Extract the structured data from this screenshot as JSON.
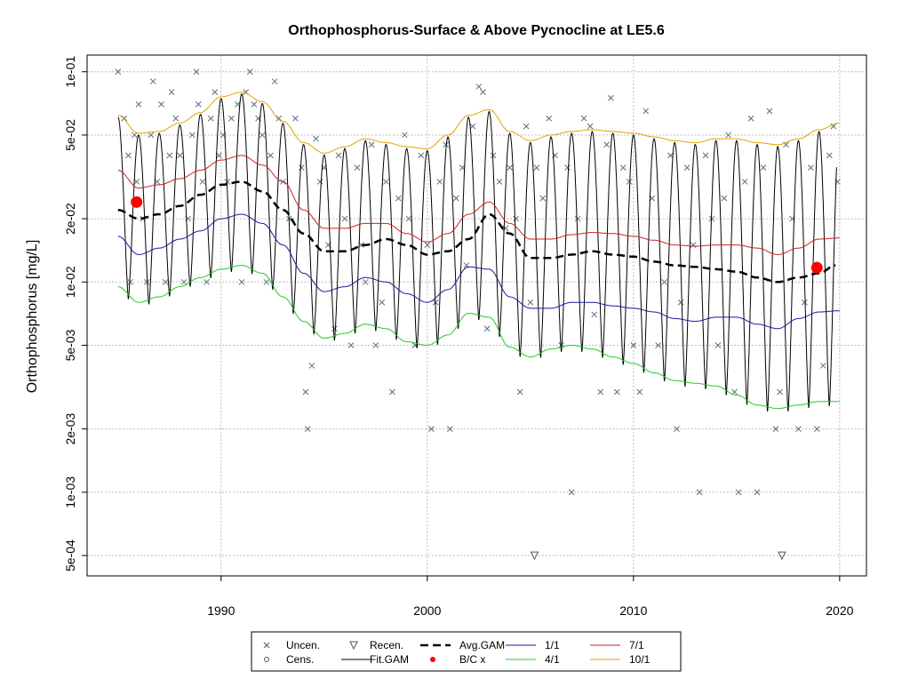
{
  "chart_data": {
    "type": "line",
    "title": "Orthophosphorus-Surface & Above Pycnocline at LE5.6",
    "ylabel": "Orthophosphorus [mg/L]",
    "xlabel": "",
    "y_scale": "log",
    "xlim": [
      1983.5,
      2021.3
    ],
    "ylim": [
      0.0004,
      0.12
    ],
    "x_ticks": [
      1990,
      2000,
      2010,
      2020
    ],
    "y_ticks": [
      {
        "value": 0.1,
        "label": "1e-01"
      },
      {
        "value": 0.05,
        "label": "5e-02"
      },
      {
        "value": 0.02,
        "label": "2e-02"
      },
      {
        "value": 0.01,
        "label": "1e-02"
      },
      {
        "value": 0.005,
        "label": "5e-03"
      },
      {
        "value": 0.002,
        "label": "2e-03"
      },
      {
        "value": 0.001,
        "label": "1e-03"
      },
      {
        "value": 0.0005,
        "label": "5e-04"
      }
    ],
    "grid": true,
    "colors": {
      "fit": "#000000",
      "avg": "#000000",
      "p1": "#1a1aa0",
      "p4": "#22cc22",
      "p7": "#cc2222",
      "p10": "#e6a100",
      "bc": "#ff0000",
      "points": "#5a6e82"
    },
    "series": [
      {
        "name": "Avg.GAM",
        "x": [
          1985,
          1986,
          1987,
          1988,
          1989,
          1990,
          1991,
          1992,
          1993,
          1994,
          1995,
          1996,
          1997,
          1998,
          1999,
          2000,
          2001,
          2002,
          2003,
          2004,
          2005,
          2006,
          2007,
          2008,
          2009,
          2010,
          2011,
          2012,
          2013,
          2014,
          2015,
          2016,
          2017,
          2018,
          2019,
          2019.8
        ],
        "y": [
          0.022,
          0.02,
          0.021,
          0.023,
          0.026,
          0.029,
          0.03,
          0.027,
          0.022,
          0.017,
          0.014,
          0.014,
          0.015,
          0.016,
          0.015,
          0.0135,
          0.014,
          0.016,
          0.021,
          0.017,
          0.013,
          0.013,
          0.0135,
          0.014,
          0.0135,
          0.0132,
          0.0125,
          0.012,
          0.0118,
          0.0115,
          0.0112,
          0.0105,
          0.01,
          0.0105,
          0.011,
          0.012
        ]
      },
      {
        "name": "1/1",
        "x": [
          1985,
          1986,
          1987,
          1988,
          1989,
          1990,
          1991,
          1992,
          1993,
          1994,
          1995,
          1996,
          1997,
          1998,
          1999,
          2000,
          2001,
          2002,
          2003,
          2004,
          2005,
          2006,
          2007,
          2008,
          2009,
          2010,
          2011,
          2012,
          2013,
          2014,
          2015,
          2016,
          2017,
          2018,
          2019,
          2020
        ],
        "y": [
          0.0165,
          0.0135,
          0.0145,
          0.016,
          0.0175,
          0.02,
          0.021,
          0.019,
          0.015,
          0.011,
          0.009,
          0.0095,
          0.0105,
          0.01,
          0.0088,
          0.008,
          0.0092,
          0.0118,
          0.0115,
          0.0085,
          0.0075,
          0.0075,
          0.008,
          0.008,
          0.0077,
          0.0075,
          0.0072,
          0.0067,
          0.0065,
          0.0068,
          0.0068,
          0.0063,
          0.006,
          0.0067,
          0.0072,
          0.0073
        ]
      },
      {
        "name": "4/1",
        "x": [
          1985,
          1986,
          1987,
          1988,
          1989,
          1990,
          1991,
          1992,
          1993,
          1994,
          1995,
          1996,
          1997,
          1998,
          1999,
          2000,
          2001,
          2002,
          2003,
          2004,
          2005,
          2006,
          2007,
          2008,
          2009,
          2010,
          2011,
          2012,
          2013,
          2014,
          2015,
          2016,
          2017,
          2018,
          2019,
          2020
        ],
        "y": [
          0.0095,
          0.008,
          0.0085,
          0.0095,
          0.0105,
          0.0115,
          0.012,
          0.011,
          0.0085,
          0.0065,
          0.0054,
          0.0057,
          0.0063,
          0.006,
          0.0052,
          0.005,
          0.0056,
          0.0071,
          0.0068,
          0.0049,
          0.0044,
          0.0048,
          0.005,
          0.0048,
          0.0044,
          0.0041,
          0.0037,
          0.0034,
          0.0033,
          0.0032,
          0.0029,
          0.0026,
          0.0025,
          0.0026,
          0.0027,
          0.0027
        ]
      },
      {
        "name": "7/1",
        "x": [
          1985,
          1986,
          1987,
          1988,
          1989,
          1990,
          1991,
          1992,
          1993,
          1994,
          1995,
          1996,
          1997,
          1998,
          1999,
          2000,
          2001,
          2002,
          2003,
          2004,
          2005,
          2006,
          2007,
          2008,
          2009,
          2010,
          2011,
          2012,
          2013,
          2014,
          2015,
          2016,
          2017,
          2018,
          2019,
          2020
        ],
        "y": [
          0.034,
          0.028,
          0.029,
          0.031,
          0.034,
          0.038,
          0.04,
          0.036,
          0.03,
          0.022,
          0.018,
          0.018,
          0.019,
          0.019,
          0.017,
          0.0155,
          0.017,
          0.021,
          0.024,
          0.019,
          0.016,
          0.016,
          0.0168,
          0.0172,
          0.017,
          0.0165,
          0.0158,
          0.015,
          0.0148,
          0.015,
          0.015,
          0.0145,
          0.0135,
          0.0145,
          0.016,
          0.0162
        ]
      },
      {
        "name": "10/1",
        "x": [
          1985,
          1986,
          1987,
          1988,
          1989,
          1990,
          1991,
          1992,
          1993,
          1994,
          1995,
          1996,
          1997,
          1998,
          1999,
          2000,
          2001,
          2002,
          2003,
          2004,
          2005,
          2006,
          2007,
          2008,
          2009,
          2010,
          2011,
          2012,
          2013,
          2014,
          2015,
          2016,
          2017,
          2018,
          2019,
          2020
        ],
        "y": [
          0.062,
          0.051,
          0.052,
          0.057,
          0.064,
          0.076,
          0.08,
          0.072,
          0.058,
          0.046,
          0.041,
          0.044,
          0.048,
          0.046,
          0.044,
          0.043,
          0.05,
          0.062,
          0.066,
          0.052,
          0.047,
          0.05,
          0.052,
          0.053,
          0.052,
          0.051,
          0.049,
          0.047,
          0.046,
          0.048,
          0.048,
          0.046,
          0.045,
          0.048,
          0.053,
          0.057
        ]
      }
    ],
    "fit_gam": {
      "name": "Fit.GAM",
      "seasonal_peak_fraction": 0.1,
      "description_of_envelope": "oscillates annually between 1/1-ish minimum and 10/1 envelope"
    },
    "bc_points": [
      {
        "x": 1985.9,
        "y": 0.024
      },
      {
        "x": 2018.9,
        "y": 0.0117
      }
    ],
    "recensored_points": [
      {
        "x": 2005.2,
        "y": 0.0005
      },
      {
        "x": 2017.2,
        "y": 0.0005
      }
    ],
    "uncensored_points": [
      [
        1985.0,
        0.1
      ],
      [
        1985.3,
        0.06
      ],
      [
        1985.5,
        0.04
      ],
      [
        1985.6,
        0.01
      ],
      [
        1985.8,
        0.05
      ],
      [
        1985.9,
        0.03
      ],
      [
        1986.0,
        0.07
      ],
      [
        1986.2,
        0.02
      ],
      [
        1986.4,
        0.01
      ],
      [
        1986.6,
        0.05
      ],
      [
        1986.7,
        0.09
      ],
      [
        1986.9,
        0.03
      ],
      [
        1987.1,
        0.07
      ],
      [
        1987.3,
        0.01
      ],
      [
        1987.5,
        0.04
      ],
      [
        1987.6,
        0.08
      ],
      [
        1987.8,
        0.06
      ],
      [
        1988.0,
        0.04
      ],
      [
        1988.2,
        0.01
      ],
      [
        1988.4,
        0.02
      ],
      [
        1988.6,
        0.05
      ],
      [
        1988.8,
        0.1
      ],
      [
        1988.9,
        0.07
      ],
      [
        1989.1,
        0.03
      ],
      [
        1989.3,
        0.01
      ],
      [
        1989.5,
        0.06
      ],
      [
        1989.7,
        0.08
      ],
      [
        1989.9,
        0.04
      ],
      [
        1990.1,
        0.05
      ],
      [
        1990.3,
        0.03
      ],
      [
        1990.5,
        0.06
      ],
      [
        1990.8,
        0.07
      ],
      [
        1991.0,
        0.01
      ],
      [
        1991.2,
        0.08
      ],
      [
        1991.4,
        0.1
      ],
      [
        1991.6,
        0.07
      ],
      [
        1991.8,
        0.06
      ],
      [
        1992.0,
        0.05
      ],
      [
        1992.2,
        0.01
      ],
      [
        1992.4,
        0.04
      ],
      [
        1992.6,
        0.09
      ],
      [
        1992.8,
        0.06
      ],
      [
        1993.0,
        0.03
      ],
      [
        1993.3,
        0.02
      ],
      [
        1993.6,
        0.06
      ],
      [
        1993.9,
        0.035
      ],
      [
        1994.1,
        0.003
      ],
      [
        1994.2,
        0.002
      ],
      [
        1994.4,
        0.004
      ],
      [
        1994.6,
        0.048
      ],
      [
        1994.8,
        0.03
      ],
      [
        1995.0,
        0.035
      ],
      [
        1995.2,
        0.015
      ],
      [
        1995.5,
        0.006
      ],
      [
        1995.7,
        0.04
      ],
      [
        1996.0,
        0.02
      ],
      [
        1996.3,
        0.005
      ],
      [
        1996.6,
        0.035
      ],
      [
        1996.8,
        0.015
      ],
      [
        1997.0,
        0.01
      ],
      [
        1997.3,
        0.045
      ],
      [
        1997.5,
        0.005
      ],
      [
        1997.8,
        0.008
      ],
      [
        1998.0,
        0.03
      ],
      [
        1998.3,
        0.003
      ],
      [
        1998.6,
        0.025
      ],
      [
        1998.9,
        0.05
      ],
      [
        1999.1,
        0.02
      ],
      [
        1999.4,
        0.005
      ],
      [
        1999.7,
        0.04
      ],
      [
        2000.0,
        0.015
      ],
      [
        2000.2,
        0.002
      ],
      [
        2000.4,
        0.008
      ],
      [
        2000.6,
        0.03
      ],
      [
        2000.9,
        0.045
      ],
      [
        2001.1,
        0.002
      ],
      [
        2001.4,
        0.025
      ],
      [
        2001.7,
        0.035
      ],
      [
        2001.9,
        0.012
      ],
      [
        2002.2,
        0.055
      ],
      [
        2002.5,
        0.085
      ],
      [
        2002.7,
        0.08
      ],
      [
        2002.9,
        0.006
      ],
      [
        2003.2,
        0.04
      ],
      [
        2003.5,
        0.03
      ],
      [
        2003.8,
        0.018
      ],
      [
        2004.0,
        0.035
      ],
      [
        2004.3,
        0.02
      ],
      [
        2004.5,
        0.003
      ],
      [
        2004.8,
        0.055
      ],
      [
        2005.0,
        0.008
      ],
      [
        2005.3,
        0.035
      ],
      [
        2005.6,
        0.025
      ],
      [
        2005.9,
        0.06
      ],
      [
        2006.2,
        0.04
      ],
      [
        2006.5,
        0.005
      ],
      [
        2006.8,
        0.035
      ],
      [
        2007.0,
        0.001
      ],
      [
        2007.3,
        0.02
      ],
      [
        2007.6,
        0.06
      ],
      [
        2007.9,
        0.055
      ],
      [
        2008.1,
        0.007
      ],
      [
        2008.4,
        0.003
      ],
      [
        2008.7,
        0.045
      ],
      [
        2008.9,
        0.075
      ],
      [
        2009.2,
        0.003
      ],
      [
        2009.5,
        0.035
      ],
      [
        2009.8,
        0.03
      ],
      [
        2010.0,
        0.005
      ],
      [
        2010.3,
        0.003
      ],
      [
        2010.6,
        0.065
      ],
      [
        2010.9,
        0.025
      ],
      [
        2011.2,
        0.005
      ],
      [
        2011.5,
        0.01
      ],
      [
        2011.8,
        0.04
      ],
      [
        2012.1,
        0.002
      ],
      [
        2012.3,
        0.008
      ],
      [
        2012.6,
        0.035
      ],
      [
        2012.9,
        0.015
      ],
      [
        2013.2,
        0.001
      ],
      [
        2013.5,
        0.04
      ],
      [
        2013.8,
        0.02
      ],
      [
        2014.1,
        0.005
      ],
      [
        2014.4,
        0.025
      ],
      [
        2014.6,
        0.05
      ],
      [
        2014.9,
        0.003
      ],
      [
        2015.1,
        0.001
      ],
      [
        2015.4,
        0.03
      ],
      [
        2015.7,
        0.06
      ],
      [
        2016.0,
        0.001
      ],
      [
        2016.3,
        0.035
      ],
      [
        2016.6,
        0.065
      ],
      [
        2016.9,
        0.002
      ],
      [
        2017.1,
        0.003
      ],
      [
        2017.4,
        0.045
      ],
      [
        2017.7,
        0.02
      ],
      [
        2018.0,
        0.002
      ],
      [
        2018.3,
        0.008
      ],
      [
        2018.6,
        0.035
      ],
      [
        2018.9,
        0.002
      ],
      [
        2019.2,
        0.004
      ],
      [
        2019.5,
        0.04
      ],
      [
        2019.7,
        0.055
      ],
      [
        2019.9,
        0.03
      ]
    ],
    "legend": {
      "placement": "bottom",
      "entries": [
        {
          "label": "Uncen.",
          "symbol": "x"
        },
        {
          "label": "Recen.",
          "symbol": "triangle"
        },
        {
          "label": "Avg.GAM",
          "symbol": "dashed"
        },
        {
          "label": "1/1",
          "symbol": "line",
          "color": "#1a1aa0"
        },
        {
          "label": "7/1",
          "symbol": "line",
          "color": "#cc2222"
        },
        {
          "label": "Cens.",
          "symbol": "circle"
        },
        {
          "label": "Fit.GAM",
          "symbol": "line",
          "color": "#000000"
        },
        {
          "label": "B/C x",
          "symbol": "dot",
          "color": "#ff0000"
        },
        {
          "label": "4/1",
          "symbol": "line",
          "color": "#22cc22"
        },
        {
          "label": "10/1",
          "symbol": "line",
          "color": "#e6a100"
        }
      ]
    }
  }
}
